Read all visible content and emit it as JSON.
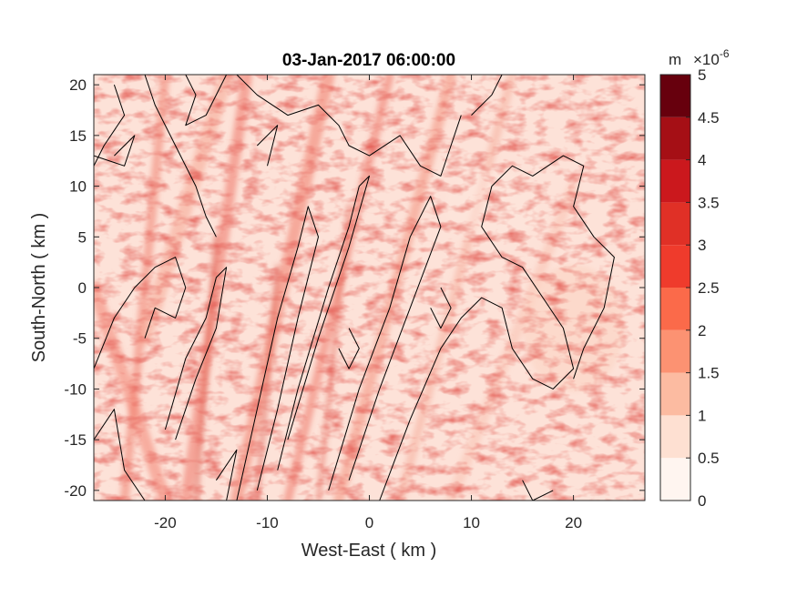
{
  "chart_data": {
    "type": "heatmap",
    "title": "03-Jan-2017 06:00:00",
    "xlabel": "West-East ( km )",
    "ylabel": "South-North ( km )",
    "xlim": [
      -27,
      27
    ],
    "ylim": [
      -21,
      21
    ],
    "x_ticks": [
      -20,
      -10,
      0,
      10,
      20
    ],
    "x_tick_labels": [
      "-20",
      "-10",
      "0",
      "10",
      "20"
    ],
    "y_ticks": [
      -20,
      -15,
      -10,
      -5,
      0,
      5,
      10,
      15,
      20
    ],
    "y_tick_labels": [
      "-20",
      "-15",
      "-10",
      "-5",
      "0",
      "5",
      "10",
      "15",
      "20"
    ],
    "colorbar": {
      "unit": "m",
      "multiplier": "×10",
      "exponent": "-6",
      "levels": [
        0,
        0.5,
        1,
        1.5,
        2,
        2.5,
        3,
        3.5,
        4,
        4.5,
        5
      ],
      "tick_labels": [
        "0",
        "0.5",
        "1",
        "1.5",
        "2",
        "2.5",
        "3",
        "3.5",
        "4",
        "4.5",
        "5"
      ],
      "colors": [
        "#fff5f0",
        "#fee0d2",
        "#fcbba1",
        "#fc9272",
        "#fb6a4a",
        "#ef3b2c",
        "#e03026",
        "#cb181d",
        "#a50f15",
        "#67000d"
      ]
    },
    "contour_color": "#000000",
    "grid": false,
    "legend": "none"
  }
}
